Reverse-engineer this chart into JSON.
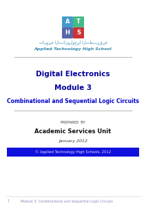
{
  "bg_color": "#ffffff",
  "logo_data": [
    {
      "letter": "A",
      "color": "#4499cc",
      "col": 0,
      "row": 1
    },
    {
      "letter": "T",
      "color": "#44bb88",
      "col": 1,
      "row": 1
    },
    {
      "letter": "H",
      "color": "#5566aa",
      "col": 0,
      "row": 0
    },
    {
      "letter": "S",
      "color": "#cc3333",
      "col": 1,
      "row": 0
    }
  ],
  "arabic_text": "ثانوية التكنولوجيا التطبيقية",
  "school_name": "Applied Technology High School",
  "title1": "Digital Electronics",
  "title2": "Module 3",
  "title3": "Combinational and Sequential Logic Circuits",
  "prepared_by_label": "PREPARED BY",
  "prepared_by": "Academic Services Unit",
  "date": "January 2012",
  "footer_bg": "#1111dd",
  "footer_text": "© Applied Technology High Schools, 2012",
  "footer_text_color": "#ddddff",
  "bottom_num": "1",
  "bottom_text": "Module 3: Combinational and Sequential Logic Circuits",
  "separator_color": "#999999",
  "title_color": "#000099",
  "title3_color": "#0000cc",
  "arabic_color": "#3388aa",
  "school_color": "#3388aa"
}
